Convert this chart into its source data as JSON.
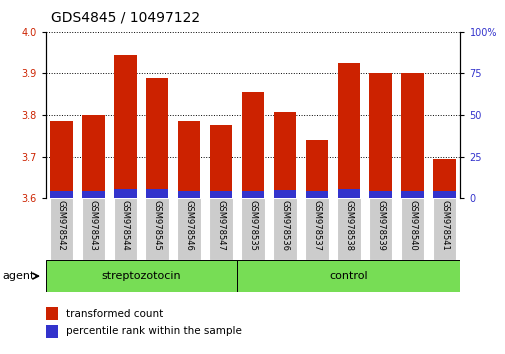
{
  "title": "GDS4845 / 10497122",
  "samples": [
    "GSM978542",
    "GSM978543",
    "GSM978544",
    "GSM978545",
    "GSM978546",
    "GSM978547",
    "GSM978535",
    "GSM978536",
    "GSM978537",
    "GSM978538",
    "GSM978539",
    "GSM978540",
    "GSM978541"
  ],
  "red_values": [
    3.785,
    3.8,
    3.945,
    3.888,
    3.785,
    3.775,
    3.855,
    3.808,
    3.74,
    3.925,
    3.9,
    3.9,
    3.695
  ],
  "blue_values": [
    3.618,
    3.618,
    3.622,
    3.622,
    3.618,
    3.618,
    3.618,
    3.62,
    3.618,
    3.622,
    3.618,
    3.618,
    3.618
  ],
  "base": 3.6,
  "ylim": [
    3.6,
    4.0
  ],
  "yticks_left": [
    3.6,
    3.7,
    3.8,
    3.9,
    4.0
  ],
  "yticks_right": [
    0,
    25,
    50,
    75,
    100
  ],
  "group1_label": "streptozotocin",
  "group2_label": "control",
  "group1_count": 6,
  "group2_count": 7,
  "agent_label": "agent",
  "legend1": "transformed count",
  "legend2": "percentile rank within the sample",
  "red_color": "#cc2200",
  "blue_color": "#3333cc",
  "green_fill": "#77dd55",
  "bar_bg": "#cccccc",
  "bar_width": 0.7
}
